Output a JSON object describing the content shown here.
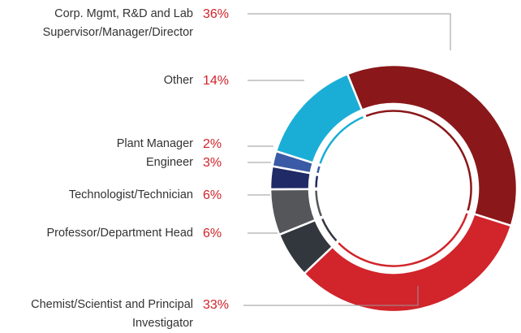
{
  "chart_data": {
    "type": "donut",
    "categories": [
      "Corp. Mgmt, R&D and Lab\nSupervisor/Manager/Director",
      "Chemist/Scientist and Principal\nInvestigator",
      "Professor/Department Head",
      "Technologist/Technician",
      "Engineer",
      "Plant Manager",
      "Other"
    ],
    "values": [
      36,
      33,
      6,
      6,
      3,
      2,
      14
    ],
    "value_labels": [
      "36%",
      "33%",
      "6%",
      "6%",
      "3%",
      "2%",
      "14%"
    ],
    "colors": [
      "#8a1719",
      "#d1242b",
      "#31373d",
      "#55565a",
      "#1f2a66",
      "#3a5aa5",
      "#1aaed6"
    ]
  }
}
